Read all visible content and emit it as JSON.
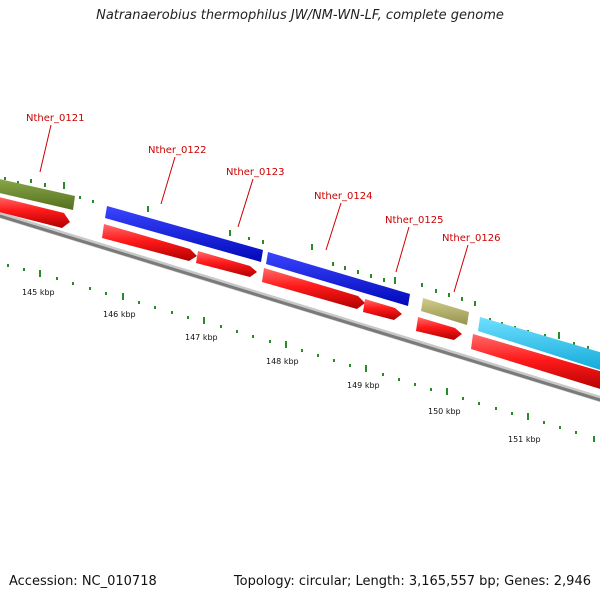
{
  "title": "Natranaerobius thermophilus JW/NM-WN-LF, complete genome",
  "footer": {
    "accession": "Accession: NC_010718",
    "summary": "Topology: circular; Length: 3,165,557 bp; Genes: 2,946"
  },
  "ruler_labels": [
    "145 kbp",
    "146 kbp",
    "147 kbp",
    "148 kbp",
    "149 kbp",
    "150 kbp",
    "151 kbp"
  ],
  "gene_labels": [
    "Nther_0121",
    "Nther_0122",
    "Nther_0123",
    "Nther_0124",
    "Nther_0125",
    "Nther_0126"
  ],
  "colors": {
    "gene_label": "#cc0000",
    "cds": "#ff1a1a",
    "blue_feature": "#0a14e6",
    "olive_feature": "#6b8a2a",
    "khaki_feature": "#b5b26e",
    "cyan_feature": "#1ec8f5",
    "backbone": "#7a7a7a",
    "tick": "#2a8a2a"
  }
}
